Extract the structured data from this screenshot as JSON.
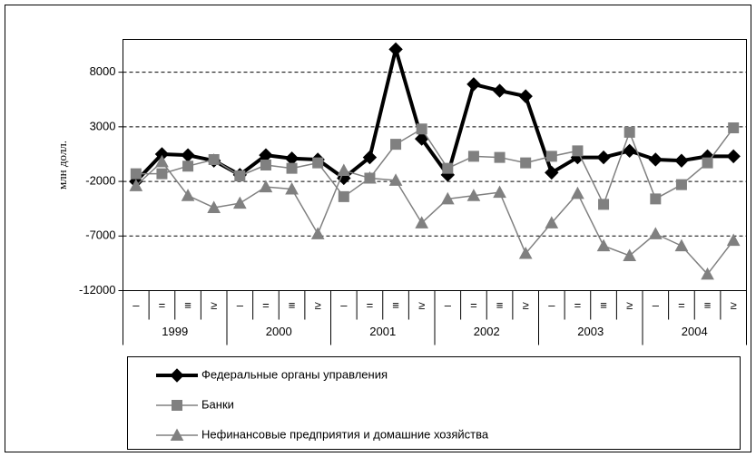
{
  "chart_data": {
    "type": "line",
    "y_label": "млн долл.",
    "categories": [
      "–",
      "=",
      "≡",
      "≥",
      "–",
      "=",
      "≡",
      "≥",
      "–",
      "=",
      "≡",
      "≥",
      "–",
      "=",
      "≡",
      "≥",
      "–",
      "=",
      "≡",
      "≥",
      "–",
      "=",
      "≡",
      "≥"
    ],
    "year_labels": [
      "1999",
      "2000",
      "2001",
      "2002",
      "2003",
      "2004"
    ],
    "ylim": [
      -12000,
      11000
    ],
    "yticks": [
      -12000,
      -7000,
      -2000,
      3000,
      8000
    ],
    "grid": true,
    "series": [
      {
        "name": "Федеральные органы управления",
        "color": "#000000",
        "marker": "diamond",
        "values": [
          -2000,
          500,
          400,
          -100,
          -1400,
          400,
          100,
          0,
          -1700,
          200,
          10100,
          1900,
          -1400,
          6900,
          6300,
          5800,
          -1200,
          200,
          200,
          800,
          0,
          -100,
          300,
          300
        ]
      },
      {
        "name": "Банки",
        "color": "#808080",
        "marker": "square",
        "values": [
          -1300,
          -1300,
          -600,
          0,
          -1500,
          -500,
          -800,
          -300,
          -3400,
          -1700,
          1400,
          2800,
          -800,
          300,
          200,
          -300,
          300,
          800,
          -4100,
          2500,
          -3600,
          -2300,
          -300,
          2900
        ]
      },
      {
        "name": "Нефинансовые предприятия и домашние хозяйства",
        "color": "#808080",
        "marker": "triangle",
        "values": [
          -2400,
          -200,
          -3300,
          -4400,
          -4000,
          -2500,
          -2700,
          -6800,
          -1000,
          -1700,
          -1900,
          -5800,
          -3600,
          -3300,
          -3000,
          -8600,
          -5800,
          -3100,
          -7900,
          -8800,
          -6800,
          -7900,
          -10500,
          -7400
        ]
      }
    ]
  }
}
